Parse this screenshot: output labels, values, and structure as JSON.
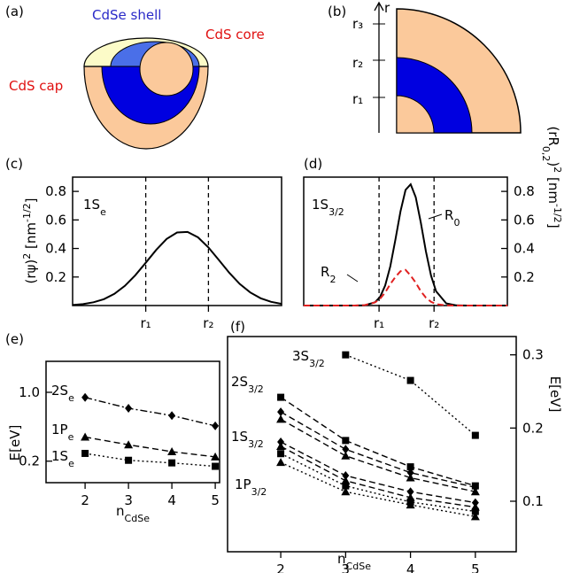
{
  "diagram_a": {
    "panel": "(a)",
    "labels": [
      "CdSe shell",
      "CdS core",
      "CdS cap"
    ]
  },
  "diagram_b": {
    "panel": "(b)",
    "axis": "r",
    "ticks": [
      "r₃",
      "r₂",
      "r₁"
    ]
  },
  "chart_data": [
    {
      "type": "line",
      "panel": "(c)",
      "ylabel": [
        {
          "text": "(rψ)"
        },
        {
          "text": "2",
          "shift": "super"
        },
        {
          "text": " [nm"
        },
        {
          "text": "-1/2",
          "shift": "super"
        },
        {
          "text": "]"
        }
      ],
      "annotations": [
        [
          {
            "text": "1S"
          },
          {
            "text": "e",
            "shift": "sub"
          }
        ]
      ],
      "xlim": [
        0,
        10
      ],
      "xticks": [
        {
          "value": 3.5,
          "label": "r₁"
        },
        {
          "value": 6.5,
          "label": "r₂"
        }
      ],
      "xtick_lines": true,
      "ylim": [
        0,
        0.9
      ],
      "yticks": [
        0.2,
        0.4,
        0.6,
        0.8
      ],
      "yaxis": "left",
      "x": [
        0,
        0.5,
        1,
        1.5,
        2,
        2.5,
        3,
        3.5,
        4,
        4.5,
        5,
        5.5,
        6,
        6.5,
        7,
        7.5,
        8,
        8.5,
        9,
        9.5,
        10
      ],
      "series": [
        {
          "color": "#000000",
          "dash": "solid",
          "values": [
            0.004,
            0.01,
            0.023,
            0.045,
            0.082,
            0.138,
            0.212,
            0.3,
            0.39,
            0.467,
            0.512,
            0.516,
            0.478,
            0.407,
            0.319,
            0.229,
            0.151,
            0.092,
            0.051,
            0.026,
            0.012
          ]
        }
      ]
    },
    {
      "type": "line",
      "panel": "(d)",
      "ylabel": [
        {
          "text": "(rR"
        },
        {
          "text": "0,2",
          "shift": "sub"
        },
        {
          "text": ")"
        },
        {
          "text": "2",
          "shift": "super"
        },
        {
          "text": " [nm"
        },
        {
          "text": "-1/2",
          "shift": "super"
        },
        {
          "text": "]"
        }
      ],
      "annotations": [
        [
          {
            "text": "1S"
          },
          {
            "text": "3/2",
            "shift": "sub"
          }
        ],
        [
          {
            "text": "R"
          },
          {
            "text": "0",
            "shift": "sub"
          }
        ],
        [
          {
            "text": "R"
          },
          {
            "text": "2",
            "shift": "sub"
          }
        ]
      ],
      "xlim": [
        0,
        10
      ],
      "xticks": [
        {
          "value": 3.7,
          "label": "r₁"
        },
        {
          "value": 6.4,
          "label": "r₂"
        }
      ],
      "xtick_lines": true,
      "ylim": [
        0,
        0.9
      ],
      "yticks": [
        0.2,
        0.4,
        0.6,
        0.8
      ],
      "yaxis": "right",
      "x": [
        0,
        2,
        2.5,
        3,
        3.5,
        3.75,
        4,
        4.25,
        4.5,
        4.75,
        5,
        5.25,
        5.5,
        5.75,
        6,
        6.25,
        6.5,
        7,
        7.5,
        8,
        10
      ],
      "series": [
        {
          "color": "#000000",
          "dash": "solid",
          "values": [
            0,
            0,
            0,
            0.002,
            0.023,
            0.061,
            0.14,
            0.275,
            0.46,
            0.66,
            0.81,
            0.85,
            0.76,
            0.58,
            0.38,
            0.21,
            0.1,
            0.015,
            0.001,
            0,
            0
          ]
        },
        {
          "color": "#e02020",
          "dash": "dashed",
          "values": [
            0,
            0,
            0,
            0.003,
            0.022,
            0.048,
            0.091,
            0.15,
            0.2,
            0.24,
            0.25,
            0.21,
            0.16,
            0.1,
            0.055,
            0.026,
            0.01,
            0.001,
            0,
            0,
            0
          ]
        }
      ]
    },
    {
      "type": "line",
      "panel": "(e)",
      "ylabel": [
        {
          "text": "E[eV]"
        }
      ],
      "xlabel": [
        {
          "text": "n"
        },
        {
          "text": "CdSe",
          "shift": "sub"
        }
      ],
      "annotations": [
        [
          {
            "text": "2S"
          },
          {
            "text": "e",
            "shift": "sub"
          }
        ],
        [
          {
            "text": "1P"
          },
          {
            "text": "e",
            "shift": "sub"
          }
        ],
        [
          {
            "text": "1S"
          },
          {
            "text": "e",
            "shift": "sub"
          }
        ]
      ],
      "xlim": [
        1.1,
        5.1
      ],
      "xticks": [
        2,
        3,
        4,
        5
      ],
      "ylim": [
        -0.05,
        1.36
      ],
      "yticks": [
        0.2,
        {
          "value": 1,
          "label": "1.0"
        }
      ],
      "yaxis": "left",
      "x": [
        2,
        3,
        4,
        5
      ],
      "series": [
        {
          "color": "#000000",
          "dash": "dashdot",
          "marker": "diamond",
          "values": [
            0.94,
            0.815,
            0.73,
            0.61
          ]
        },
        {
          "color": "#000000",
          "dash": "dashed",
          "marker": "triangle",
          "values": [
            0.48,
            0.39,
            0.31,
            0.25
          ]
        },
        {
          "color": "#000000",
          "dash": "dotted",
          "marker": "square",
          "values": [
            0.29,
            0.21,
            0.18,
            0.14
          ]
        }
      ]
    },
    {
      "type": "line",
      "panel": "(f)",
      "ylabel": [
        {
          "text": "E[eV]"
        }
      ],
      "xlabel": [
        {
          "text": "n"
        },
        {
          "text": "CdSe",
          "shift": "sub"
        }
      ],
      "annotations": [
        [
          {
            "text": "3S"
          },
          {
            "text": "3/2",
            "shift": "sub"
          }
        ],
        [
          {
            "text": "2S"
          },
          {
            "text": "3/2",
            "shift": "sub"
          }
        ],
        [
          {
            "text": "1S"
          },
          {
            "text": "3/2",
            "shift": "sub"
          }
        ],
        [
          {
            "text": "1P"
          },
          {
            "text": "3/2",
            "shift": "sub"
          }
        ]
      ],
      "xlim": [
        1.18,
        5.63
      ],
      "xticks": [
        2,
        3,
        4,
        5
      ],
      "ylim": [
        0.031,
        0.325
      ],
      "yticks": [
        0.1,
        0.2,
        0.3
      ],
      "yaxis": "right",
      "x": [
        2,
        3,
        4,
        5
      ],
      "series": [
        {
          "color": "#000000",
          "dash": "dotted",
          "marker": "square",
          "values": [
            null,
            0.3,
            0.265,
            0.19
          ]
        },
        {
          "color": "#000000",
          "dash": "dashed",
          "marker": "square",
          "values": [
            0.242,
            0.183,
            0.147,
            0.121
          ]
        },
        {
          "color": "#000000",
          "dash": "dashed",
          "marker": "diamond",
          "values": [
            0.222,
            0.171,
            0.139,
            0.119
          ]
        },
        {
          "color": "#000000",
          "dash": "dashed",
          "marker": "triangle",
          "values": [
            0.212,
            0.162,
            0.132,
            0.113
          ]
        },
        {
          "color": "#000000",
          "dash": "dashed",
          "marker": "diamond",
          "values": [
            0.181,
            0.135,
            0.113,
            0.098
          ]
        },
        {
          "color": "#000000",
          "dash": "dashed",
          "marker": "triangle",
          "values": [
            0.175,
            0.128,
            0.105,
            0.092
          ]
        },
        {
          "color": "#000000",
          "dash": "dotted",
          "marker": "square",
          "values": [
            0.165,
            0.121,
            0.099,
            0.086
          ]
        },
        {
          "color": "#000000",
          "dash": "dotted",
          "marker": "triangle",
          "values": [
            0.153,
            0.113,
            0.095,
            0.079
          ]
        }
      ]
    }
  ]
}
